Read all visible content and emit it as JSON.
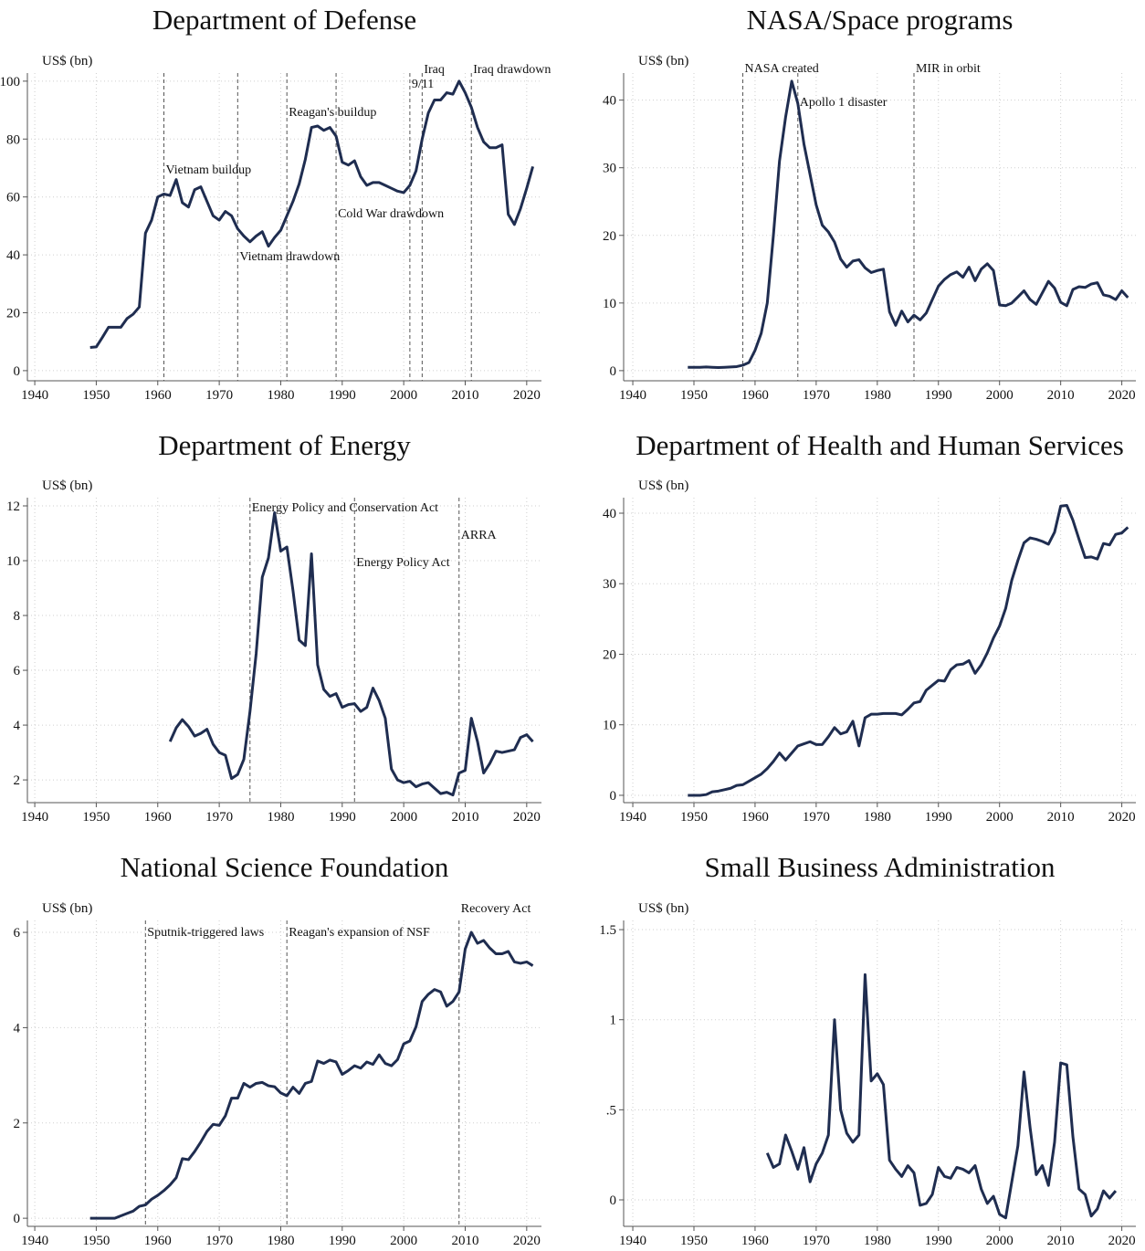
{
  "chart_data": [
    {
      "type": "line",
      "title": "Department of Defense",
      "ylabel": "US$ (bn)",
      "color": "#1f2d50",
      "grid": true,
      "x": [
        1949,
        1950,
        1951,
        1952,
        1953,
        1954,
        1955,
        1956,
        1957,
        1958,
        1959,
        1960,
        1961,
        1962,
        1963,
        1964,
        1965,
        1966,
        1967,
        1968,
        1969,
        1970,
        1971,
        1972,
        1973,
        1974,
        1975,
        1976,
        1977,
        1978,
        1979,
        1980,
        1981,
        1982,
        1983,
        1984,
        1985,
        1986,
        1987,
        1988,
        1989,
        1990,
        1991,
        1992,
        1993,
        1994,
        1995,
        1996,
        1997,
        1998,
        1999,
        2000,
        2001,
        2002,
        2003,
        2004,
        2005,
        2006,
        2007,
        2008,
        2009,
        2010,
        2011,
        2012,
        2013,
        2014,
        2015,
        2016,
        2017,
        2018,
        2019,
        2020,
        2021
      ],
      "values": [
        8,
        8.2,
        11.5,
        15,
        15,
        15,
        18,
        19.5,
        22,
        47.5,
        52,
        60,
        61,
        60.5,
        66,
        58,
        56.5,
        62.5,
        63.5,
        58.5,
        53.5,
        52,
        55,
        53.5,
        49,
        46.5,
        44.5,
        46.5,
        48,
        43,
        46,
        48.5,
        53.5,
        58.5,
        64.5,
        73,
        84,
        84.5,
        83,
        84,
        81,
        72,
        71,
        72.5,
        67,
        64,
        65,
        65,
        64,
        63,
        62,
        61.5,
        64,
        69,
        80,
        89,
        93.5,
        93.5,
        96,
        95.5,
        100,
        96,
        91,
        84,
        79,
        77,
        77,
        78,
        54,
        50.5,
        56,
        63,
        70.5
      ],
      "xlim": [
        1938.8,
        2022.4
      ],
      "xticks": [
        1940,
        1950,
        1960,
        1970,
        1980,
        1990,
        2000,
        2010,
        2020
      ],
      "ylim": [
        -3.5,
        102.8
      ],
      "yticks": [
        0,
        20,
        40,
        60,
        80,
        100
      ],
      "annotations": [
        {
          "x": 1961,
          "label": "Vietnam buildup"
        },
        {
          "x": 1973,
          "label": "Vietnam drawdown"
        },
        {
          "x": 1981,
          "label": "Reagan's buildup"
        },
        {
          "x": 1989,
          "label": "Cold War drawdown"
        },
        {
          "x": 2001,
          "label": "9/11"
        },
        {
          "x": 2003,
          "label": "Iraq"
        },
        {
          "x": 2011,
          "label": "Iraq drawdown"
        }
      ]
    },
    {
      "type": "line",
      "title": "NASA/Space programs",
      "ylabel": "US$ (bn)",
      "color": "#1f2d50",
      "grid": true,
      "x": [
        1949,
        1950,
        1951,
        1952,
        1953,
        1954,
        1955,
        1956,
        1957,
        1958,
        1959,
        1960,
        1961,
        1962,
        1963,
        1964,
        1965,
        1966,
        1967,
        1968,
        1969,
        1970,
        1971,
        1972,
        1973,
        1974,
        1975,
        1976,
        1977,
        1978,
        1979,
        1980,
        1981,
        1982,
        1983,
        1984,
        1985,
        1986,
        1987,
        1988,
        1989,
        1990,
        1991,
        1992,
        1993,
        1994,
        1995,
        1996,
        1997,
        1998,
        1999,
        2000,
        2001,
        2002,
        2003,
        2004,
        2005,
        2006,
        2007,
        2008,
        2009,
        2010,
        2011,
        2012,
        2013,
        2014,
        2015,
        2016,
        2017,
        2018,
        2019,
        2020,
        2021
      ],
      "values": [
        0.5,
        0.5,
        0.5,
        0.55,
        0.5,
        0.45,
        0.5,
        0.55,
        0.6,
        0.8,
        1.2,
        3,
        5.5,
        10,
        20,
        31,
        37.5,
        42.8,
        39.5,
        33.5,
        29,
        24.5,
        21.5,
        20.5,
        19,
        16.5,
        15.3,
        16.2,
        16.4,
        15.2,
        14.5,
        14.8,
        15,
        8.7,
        6.7,
        8.8,
        7.2,
        8.2,
        7.5,
        8.5,
        10.5,
        12.5,
        13.5,
        14.2,
        14.6,
        13.8,
        15.3,
        13.3,
        15,
        15.8,
        14.8,
        9.7,
        9.6,
        10,
        10.9,
        11.8,
        10.5,
        9.8,
        11.5,
        13.2,
        12.2,
        10.1,
        9.6,
        12,
        12.4,
        12.3,
        12.8,
        13,
        11.2,
        11,
        10.5,
        11.8,
        10.8
      ],
      "xlim": [
        1938.5,
        2022.3
      ],
      "xticks": [
        1940,
        1950,
        1960,
        1970,
        1980,
        1990,
        2000,
        2010,
        2020
      ],
      "ylim": [
        -1.5,
        44
      ],
      "yticks": [
        0,
        10,
        20,
        30,
        40
      ],
      "annotations": [
        {
          "x": 1958,
          "label": "NASA created"
        },
        {
          "x": 1967,
          "label": "Apollo 1 disaster"
        },
        {
          "x": 1986,
          "label": "MIR in orbit"
        }
      ]
    },
    {
      "type": "line",
      "title": "Department of Energy",
      "ylabel": "US$ (bn)",
      "color": "#1f2d50",
      "grid": true,
      "x": [
        1962,
        1963,
        1964,
        1965,
        1966,
        1967,
        1968,
        1969,
        1970,
        1971,
        1972,
        1973,
        1974,
        1975,
        1976,
        1977,
        1978,
        1979,
        1980,
        1981,
        1982,
        1983,
        1984,
        1985,
        1986,
        1987,
        1988,
        1989,
        1990,
        1991,
        1992,
        1993,
        1994,
        1995,
        1996,
        1997,
        1998,
        1999,
        2000,
        2001,
        2002,
        2003,
        2004,
        2005,
        2006,
        2007,
        2008,
        2009,
        2010,
        2011,
        2012,
        2013,
        2014,
        2015,
        2016,
        2017,
        2018,
        2019,
        2020,
        2021
      ],
      "values": [
        3.4,
        3.9,
        4.2,
        3.95,
        3.6,
        3.7,
        3.85,
        3.3,
        3,
        2.9,
        2.05,
        2.2,
        2.75,
        4.5,
        6.6,
        9.4,
        10.1,
        11.75,
        10.35,
        10.5,
        8.9,
        7.1,
        6.9,
        10.25,
        6.2,
        5.3,
        5.05,
        5.15,
        4.65,
        4.75,
        4.78,
        4.5,
        4.65,
        5.35,
        4.9,
        4.25,
        2.4,
        2,
        1.9,
        1.95,
        1.75,
        1.85,
        1.9,
        1.7,
        1.5,
        1.55,
        1.45,
        2.25,
        2.35,
        4.25,
        3.4,
        2.25,
        2.6,
        3.05,
        3,
        3.05,
        3.1,
        3.55,
        3.65,
        3.4
      ],
      "xlim": [
        1938.8,
        2022.4
      ],
      "xticks": [
        1940,
        1950,
        1960,
        1970,
        1980,
        1990,
        2000,
        2010,
        2020
      ],
      "ylim": [
        1.17,
        12.3
      ],
      "yticks": [
        2,
        4,
        6,
        8,
        10,
        12
      ],
      "annotations": [
        {
          "x": 1975,
          "label": "Energy Policy and Conservation Act"
        },
        {
          "x": 1992,
          "label": "Energy Policy Act"
        },
        {
          "x": 2009,
          "label": "ARRA"
        }
      ]
    },
    {
      "type": "line",
      "title": "Department of Health and Human Services",
      "ylabel": "US$ (bn)",
      "color": "#1f2d50",
      "grid": true,
      "x": [
        1949,
        1950,
        1951,
        1952,
        1953,
        1954,
        1955,
        1956,
        1957,
        1958,
        1959,
        1960,
        1961,
        1962,
        1963,
        1964,
        1965,
        1966,
        1967,
        1968,
        1969,
        1970,
        1971,
        1972,
        1973,
        1974,
        1975,
        1976,
        1977,
        1978,
        1979,
        1980,
        1981,
        1982,
        1983,
        1984,
        1985,
        1986,
        1987,
        1988,
        1989,
        1990,
        1991,
        1992,
        1993,
        1994,
        1995,
        1996,
        1997,
        1998,
        1999,
        2000,
        2001,
        2002,
        2003,
        2004,
        2005,
        2006,
        2007,
        2008,
        2009,
        2010,
        2011,
        2012,
        2013,
        2014,
        2015,
        2016,
        2017,
        2018,
        2019,
        2020,
        2021
      ],
      "values": [
        0,
        0,
        0,
        0.1,
        0.5,
        0.6,
        0.8,
        1,
        1.4,
        1.5,
        2,
        2.5,
        3,
        3.8,
        4.8,
        6,
        5,
        6,
        7,
        7.3,
        7.6,
        7.2,
        7.2,
        8.3,
        9.6,
        8.7,
        9,
        10.5,
        7,
        11,
        11.5,
        11.5,
        11.6,
        11.6,
        11.6,
        11.4,
        12.2,
        13.1,
        13.3,
        14.9,
        15.6,
        16.3,
        16.2,
        17.8,
        18.5,
        18.6,
        19.1,
        17.3,
        18.5,
        20.2,
        22.3,
        24,
        26.5,
        30.5,
        33.3,
        35.8,
        36.5,
        36.3,
        36,
        35.6,
        37.3,
        41,
        41.1,
        39,
        36.3,
        33.7,
        33.8,
        33.5,
        35.7,
        35.5,
        37,
        37.2,
        38
      ],
      "xlim": [
        1938.5,
        2022.3
      ],
      "xticks": [
        1940,
        1950,
        1960,
        1970,
        1980,
        1990,
        2000,
        2010,
        2020
      ],
      "ylim": [
        -1.04,
        42.2
      ],
      "yticks": [
        0,
        10,
        20,
        30,
        40
      ]
    },
    {
      "type": "line",
      "title": "National Science Foundation",
      "ylabel": "US$ (bn)",
      "color": "#1f2d50",
      "grid": true,
      "x": [
        1949,
        1950,
        1951,
        1952,
        1953,
        1954,
        1955,
        1956,
        1957,
        1958,
        1959,
        1960,
        1961,
        1962,
        1963,
        1964,
        1965,
        1966,
        1967,
        1968,
        1969,
        1970,
        1971,
        1972,
        1973,
        1974,
        1975,
        1976,
        1977,
        1978,
        1979,
        1980,
        1981,
        1982,
        1983,
        1984,
        1985,
        1986,
        1987,
        1988,
        1989,
        1990,
        1991,
        1992,
        1993,
        1994,
        1995,
        1996,
        1997,
        1998,
        1999,
        2000,
        2001,
        2002,
        2003,
        2004,
        2005,
        2006,
        2007,
        2008,
        2009,
        2010,
        2011,
        2012,
        2013,
        2014,
        2015,
        2016,
        2017,
        2018,
        2019,
        2020,
        2021
      ],
      "values": [
        0,
        0,
        0,
        0,
        0,
        0.05,
        0.1,
        0.15,
        0.25,
        0.28,
        0.4,
        0.48,
        0.58,
        0.7,
        0.85,
        1.25,
        1.23,
        1.4,
        1.6,
        1.82,
        1.97,
        1.95,
        2.15,
        2.52,
        2.52,
        2.83,
        2.75,
        2.83,
        2.85,
        2.78,
        2.76,
        2.63,
        2.57,
        2.75,
        2.62,
        2.83,
        2.87,
        3.3,
        3.25,
        3.32,
        3.28,
        3.02,
        3.1,
        3.2,
        3.15,
        3.28,
        3.23,
        3.43,
        3.25,
        3.2,
        3.33,
        3.66,
        3.72,
        4.02,
        4.55,
        4.7,
        4.8,
        4.75,
        4.45,
        4.55,
        4.75,
        5.65,
        6,
        5.77,
        5.83,
        5.67,
        5.55,
        5.55,
        5.6,
        5.38,
        5.35,
        5.38,
        5.3
      ],
      "xlim": [
        1938.8,
        2022.4
      ],
      "xticks": [
        1940,
        1950,
        1960,
        1970,
        1980,
        1990,
        2000,
        2010,
        2020
      ],
      "ylim": [
        -0.17,
        6.25
      ],
      "yticks": [
        0,
        2,
        4,
        6
      ],
      "annotations": [
        {
          "x": 1958,
          "label": "Sputnik-triggered laws"
        },
        {
          "x": 1981,
          "label": "Reagan's expansion of NSF"
        },
        {
          "x": 2009,
          "label": "Recovery Act"
        }
      ]
    },
    {
      "type": "line",
      "title": "Small Business Administration",
      "ylabel": "US$ (bn)",
      "color": "#1f2d50",
      "grid": true,
      "x": [
        1962,
        1963,
        1964,
        1965,
        1966,
        1967,
        1968,
        1969,
        1970,
        1971,
        1972,
        1973,
        1974,
        1975,
        1976,
        1977,
        1978,
        1979,
        1980,
        1981,
        1982,
        1983,
        1984,
        1985,
        1986,
        1987,
        1988,
        1989,
        1990,
        1991,
        1992,
        1993,
        1994,
        1995,
        1996,
        1997,
        1998,
        1999,
        2000,
        2001,
        2002,
        2003,
        2004,
        2005,
        2006,
        2007,
        2008,
        2009,
        2010,
        2011,
        2012,
        2013,
        2014,
        2015,
        2016,
        2017,
        2018,
        2019
      ],
      "values": [
        0.26,
        0.18,
        0.2,
        0.36,
        0.27,
        0.17,
        0.29,
        0.1,
        0.2,
        0.26,
        0.36,
        1,
        0.5,
        0.37,
        0.32,
        0.36,
        1.25,
        0.66,
        0.7,
        0.64,
        0.22,
        0.17,
        0.13,
        0.19,
        0.15,
        -0.03,
        -0.02,
        0.03,
        0.18,
        0.13,
        0.12,
        0.18,
        0.17,
        0.15,
        0.19,
        0.06,
        -0.02,
        0.02,
        -0.08,
        -0.1,
        0.1,
        0.3,
        0.71,
        0.4,
        0.14,
        0.19,
        0.08,
        0.32,
        0.76,
        0.75,
        0.35,
        0.06,
        0.03,
        -0.09,
        -0.05,
        0.05,
        0.01,
        0.05
      ],
      "xlim": [
        1938.5,
        2022.3
      ],
      "xticks": [
        1940,
        1950,
        1960,
        1970,
        1980,
        1990,
        2000,
        2010,
        2020
      ],
      "ylim": [
        -0.147,
        1.551
      ],
      "yticks": [
        0,
        {
          "value": 0.5,
          "label": ".5"
        },
        1,
        1.5
      ]
    }
  ]
}
